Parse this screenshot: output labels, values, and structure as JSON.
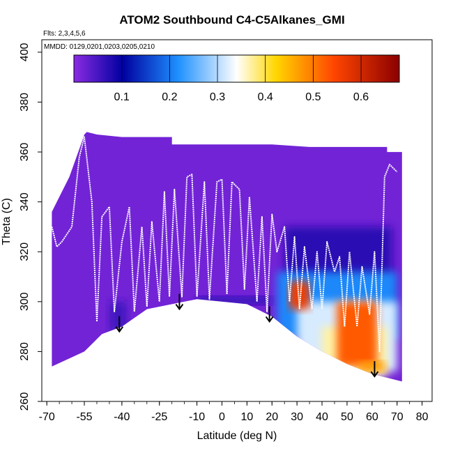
{
  "chart_data": {
    "type": "heatmap",
    "title": "ATOM2 Southbound C4-C5Alkanes_GMI",
    "flights_note": "Flts: 2,3,4,5,6",
    "dates_note": "MMDD: 0129,0201,0203,0205,0210",
    "xlabel": "Latitude (deg N)",
    "ylabel": "Theta (C)",
    "xlim": [
      -72,
      84
    ],
    "ylim": [
      260,
      405
    ],
    "x_ticks": [
      -70,
      -55,
      -40,
      -25,
      -10,
      0,
      10,
      20,
      30,
      40,
      50,
      60,
      70,
      80
    ],
    "x_tick_labels": [
      "-70",
      "-55",
      "-40",
      "-25",
      "-10",
      "0",
      "10",
      "20",
      "30",
      "40",
      "50",
      "60",
      "70",
      "80"
    ],
    "y_ticks": [
      260,
      280,
      300,
      320,
      340,
      360,
      380,
      400
    ],
    "y_tick_labels": [
      "260",
      "280",
      "300",
      "320",
      "340",
      "360",
      "380",
      "400"
    ],
    "colorbar": {
      "range": [
        0,
        0.68
      ],
      "ticks": [
        0.1,
        0.2,
        0.3,
        0.4,
        0.5,
        0.6
      ],
      "tick_labels": [
        "0.1",
        "0.2",
        "0.3",
        "0.4",
        "0.5",
        "0.6"
      ],
      "colors": [
        "#8a2be2",
        "#0000a0",
        "#1e90ff",
        "#ffffff",
        "#ffd700",
        "#ff4500",
        "#8b0000"
      ]
    },
    "colors": {
      "background_field": "#8a2be2",
      "track": "#ffffff",
      "arrow": "#000000"
    },
    "domain_top_outline": [
      [
        -68,
        336
      ],
      [
        -66,
        340
      ],
      [
        -61,
        350
      ],
      [
        -56,
        364
      ],
      [
        -55,
        367
      ],
      [
        -54,
        368
      ],
      [
        -50,
        367
      ],
      [
        -40,
        366
      ],
      [
        -20,
        366
      ],
      [
        -20,
        363
      ],
      [
        0,
        363
      ],
      [
        20,
        363
      ],
      [
        35,
        362
      ],
      [
        50,
        362
      ],
      [
        66,
        362
      ],
      [
        66,
        360
      ],
      [
        72,
        360
      ]
    ],
    "domain_bottom_outline": [
      [
        -68,
        274
      ],
      [
        -55,
        280
      ],
      [
        -48,
        287
      ],
      [
        -40,
        290
      ],
      [
        -30,
        297
      ],
      [
        -20,
        299
      ],
      [
        -10,
        301
      ],
      [
        0,
        300
      ],
      [
        10,
        299
      ],
      [
        20,
        294
      ],
      [
        30,
        286
      ],
      [
        40,
        280
      ],
      [
        50,
        275
      ],
      [
        60,
        271
      ],
      [
        72,
        268
      ]
    ],
    "concentration_regions": [
      {
        "lon": [
          -72,
          72
        ],
        "theta": [
          260,
          368
        ],
        "value": 0.02
      },
      {
        "lon": [
          -45,
          -38
        ],
        "theta": [
          288,
          300
        ],
        "value": 0.06
      },
      {
        "lon": [
          -10,
          20
        ],
        "theta": [
          299,
          302
        ],
        "value": 0.08
      },
      {
        "lon": [
          25,
          68
        ],
        "theta": [
          300,
          330
        ],
        "value": 0.08
      },
      {
        "lon": [
          22,
          70
        ],
        "theta": [
          285,
          312
        ],
        "value": 0.22
      },
      {
        "lon": [
          30,
          70
        ],
        "theta": [
          272,
          300
        ],
        "value": 0.32
      },
      {
        "lon": [
          40,
          66
        ],
        "theta": [
          270,
          290
        ],
        "value": 0.38
      },
      {
        "lon": [
          27,
          35
        ],
        "theta": [
          297,
          308
        ],
        "value": 0.58
      },
      {
        "lon": [
          46,
          62
        ],
        "theta": [
          274,
          300
        ],
        "value": 0.55
      },
      {
        "lon": [
          55,
          65
        ],
        "theta": [
          272,
          276
        ],
        "value": 0.5
      }
    ],
    "flight_track": [
      [
        -68,
        330
      ],
      [
        -66,
        322
      ],
      [
        -64,
        324
      ],
      [
        -60,
        330
      ],
      [
        -57,
        358
      ],
      [
        -55,
        366
      ],
      [
        -52,
        340
      ],
      [
        -50,
        292
      ],
      [
        -48,
        334
      ],
      [
        -45,
        338
      ],
      [
        -43,
        296
      ],
      [
        -40,
        324
      ],
      [
        -37,
        338
      ],
      [
        -35,
        296
      ],
      [
        -32,
        330
      ],
      [
        -30,
        298
      ],
      [
        -28,
        332
      ],
      [
        -25,
        300
      ],
      [
        -23,
        344
      ],
      [
        -21,
        302
      ],
      [
        -19,
        345
      ],
      [
        -16,
        302
      ],
      [
        -14,
        350
      ],
      [
        -12,
        351
      ],
      [
        -10,
        302
      ],
      [
        -7,
        348
      ],
      [
        -5,
        301
      ],
      [
        -2,
        348
      ],
      [
        0,
        349
      ],
      [
        2,
        303
      ],
      [
        4,
        348
      ],
      [
        7,
        345
      ],
      [
        9,
        305
      ],
      [
        11,
        342
      ],
      [
        14,
        300
      ],
      [
        16,
        334
      ],
      [
        18,
        296
      ],
      [
        20,
        335
      ],
      [
        22,
        320
      ],
      [
        25,
        330
      ],
      [
        27,
        300
      ],
      [
        29,
        326
      ],
      [
        31,
        297
      ],
      [
        33,
        322
      ],
      [
        36,
        297
      ],
      [
        38,
        320
      ],
      [
        40,
        297
      ],
      [
        42,
        324
      ],
      [
        45,
        312
      ],
      [
        47,
        318
      ],
      [
        49,
        290
      ],
      [
        51,
        320
      ],
      [
        54,
        290
      ],
      [
        56,
        314
      ],
      [
        59,
        295
      ],
      [
        61,
        320
      ],
      [
        63,
        280
      ],
      [
        65,
        350
      ],
      [
        67,
        355
      ],
      [
        70,
        352
      ]
    ],
    "arrows": [
      [
        -41,
        288
      ],
      [
        -17,
        297
      ],
      [
        19,
        292
      ],
      [
        61,
        270
      ]
    ]
  }
}
